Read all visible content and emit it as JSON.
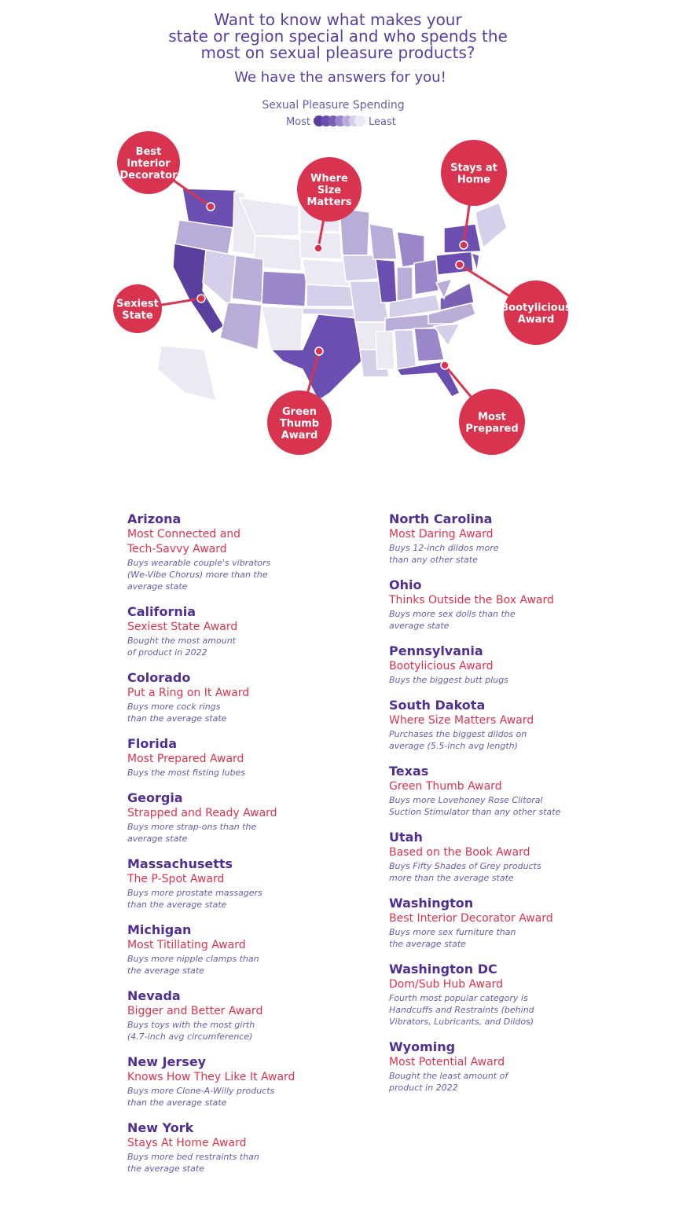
{
  "header": {
    "title_lines": [
      "Want to know what makes your",
      "state or region special and who spends the",
      "most on sexual pleasure products?"
    ],
    "subtitle": "We have the answers for you!"
  },
  "legend": {
    "title": "Sexual Pleasure Spending",
    "most": "Most",
    "least": "Least"
  },
  "callouts": [
    {
      "lines": [
        "Best",
        "Interior",
        "Decorator"
      ]
    },
    {
      "lines": [
        "Where",
        "Size",
        "Matters"
      ]
    },
    {
      "lines": [
        "Stays at",
        "Home"
      ]
    },
    {
      "lines": [
        "Sexiest",
        "State"
      ]
    },
    {
      "lines": [
        "Bootylicious",
        "Award"
      ]
    },
    {
      "lines": [
        "Green",
        "Thumb",
        "Award"
      ]
    },
    {
      "lines": [
        "Most",
        "Prepared"
      ]
    }
  ],
  "columns": [
    [
      {
        "state": "Arizona",
        "award": [
          "Most Connected and",
          "Tech-Savvy Award"
        ],
        "description": [
          "Buys wearable couple's vibrators",
          "(We-Vibe Chorus) more than the",
          "average state"
        ]
      },
      {
        "state": "California",
        "award": [
          "Sexiest State Award"
        ],
        "description": [
          "Bought the most amount",
          "of product in 2022"
        ]
      },
      {
        "state": "Colorado",
        "award": [
          "Put a Ring on It Award"
        ],
        "description": [
          "Buys more cock rings",
          "than the average state"
        ]
      },
      {
        "state": "Florida",
        "award": [
          "Most Prepared Award"
        ],
        "description": [
          "Buys the most fisting lubes"
        ]
      },
      {
        "state": "Georgia",
        "award": [
          "Strapped and Ready Award"
        ],
        "description": [
          "Buys more strap-ons than the",
          "average state"
        ]
      },
      {
        "state": "Massachusetts",
        "award": [
          "The P-Spot Award"
        ],
        "description": [
          "Buys more prostate massagers",
          "than the average state"
        ]
      },
      {
        "state": "Michigan",
        "award": [
          "Most Titillating Award"
        ],
        "description": [
          "Buys more nipple clamps than",
          "the average state"
        ]
      },
      {
        "state": "Nevada",
        "award": [
          "Bigger and Better Award"
        ],
        "description": [
          "Buys toys with the most girth",
          "(4.7-inch avg circumference)"
        ]
      },
      {
        "state": "New Jersey",
        "award": [
          "Knows How They Like It Award"
        ],
        "description": [
          "Buys more Clone-A-Willy products",
          "than the average state"
        ]
      },
      {
        "state": "New York",
        "award": [
          "Stays At Home Award"
        ],
        "description": [
          "Buys more bed restraints than",
          "the average state"
        ]
      }
    ],
    [
      {
        "state": "North Carolina",
        "award": [
          "Most Daring Award"
        ],
        "description": [
          "Buys 12-inch dildos more",
          "than any other state"
        ]
      },
      {
        "state": "Ohio",
        "award": [
          "Thinks Outside the Box Award"
        ],
        "description": [
          "Buys more sex dolls than the",
          "average state"
        ]
      },
      {
        "state": "Pennsylvania",
        "award": [
          "Bootylicious Award"
        ],
        "description": [
          "Buys the biggest butt plugs"
        ]
      },
      {
        "state": "South Dakota",
        "award": [
          "Where Size Matters Award"
        ],
        "description": [
          "Purchases the biggest dildos on",
          "average (5.5-inch avg length)"
        ]
      },
      {
        "state": "Texas",
        "award": [
          "Green Thumb Award"
        ],
        "description": [
          "Buys more Lovehoney Rose Clitoral",
          "Suction Stimulator than any other state"
        ]
      },
      {
        "state": "Utah",
        "award": [
          "Based on the Book Award"
        ],
        "description": [
          "Buys Fifty Shades of Grey products",
          "more than the average state"
        ]
      },
      {
        "state": "Washington",
        "award": [
          "Best Interior Decorator Award"
        ],
        "description": [
          "Buys more sex furniture than",
          "the average state"
        ]
      },
      {
        "state": "Washington DC",
        "award": [
          "Dom/Sub Hub Award"
        ],
        "description": [
          "Fourth most popular category is",
          "Handcuffs and Restraints (behind",
          "Vibrators, Lubricants, and Dildos)"
        ]
      },
      {
        "state": "Wyoming",
        "award": [
          "Most Potential Award"
        ],
        "description": [
          "Bought the least amount of",
          "product in 2022"
        ]
      }
    ]
  ]
}
